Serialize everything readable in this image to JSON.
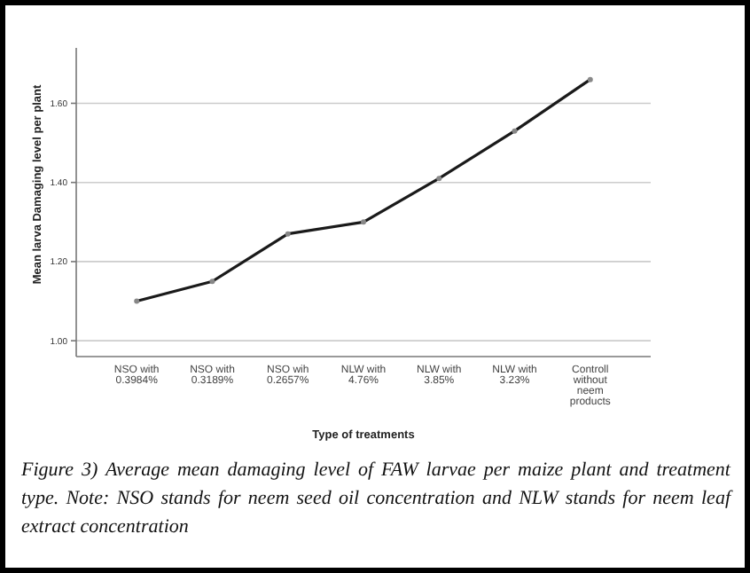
{
  "chart_data": {
    "type": "line",
    "xlabel": "Type of treatments",
    "ylabel": "Mean larva Damaging level per plant",
    "categories": [
      "NSO with 0.3984%",
      "NSO with 0.3189%",
      "NSO wih 0.2657%",
      "NLW with 4.76%",
      "NLW with 3.85%",
      "NLW with 3.23%",
      "Controll without neem products"
    ],
    "values": [
      1.1,
      1.15,
      1.27,
      1.3,
      1.41,
      1.53,
      1.66
    ],
    "color": "#1a1a1a",
    "marker": "circle",
    "line_style": "solid",
    "grid": "y",
    "ylim": [
      0.96,
      1.74
    ],
    "yticks": [
      {
        "value": 1,
        "label": "1.00"
      },
      {
        "value": 1.2,
        "label": "1.20"
      },
      {
        "value": 1.4,
        "label": "1.40"
      },
      {
        "value": 1.6,
        "label": "1.60"
      }
    ],
    "annotations": [
      "Figure 3) Average mean damaging level of FAW larvae per maize plant and treatment type. Note: NSO stands for neem seed oil concentration and NLW stands for neem leaf extract concentration"
    ]
  }
}
